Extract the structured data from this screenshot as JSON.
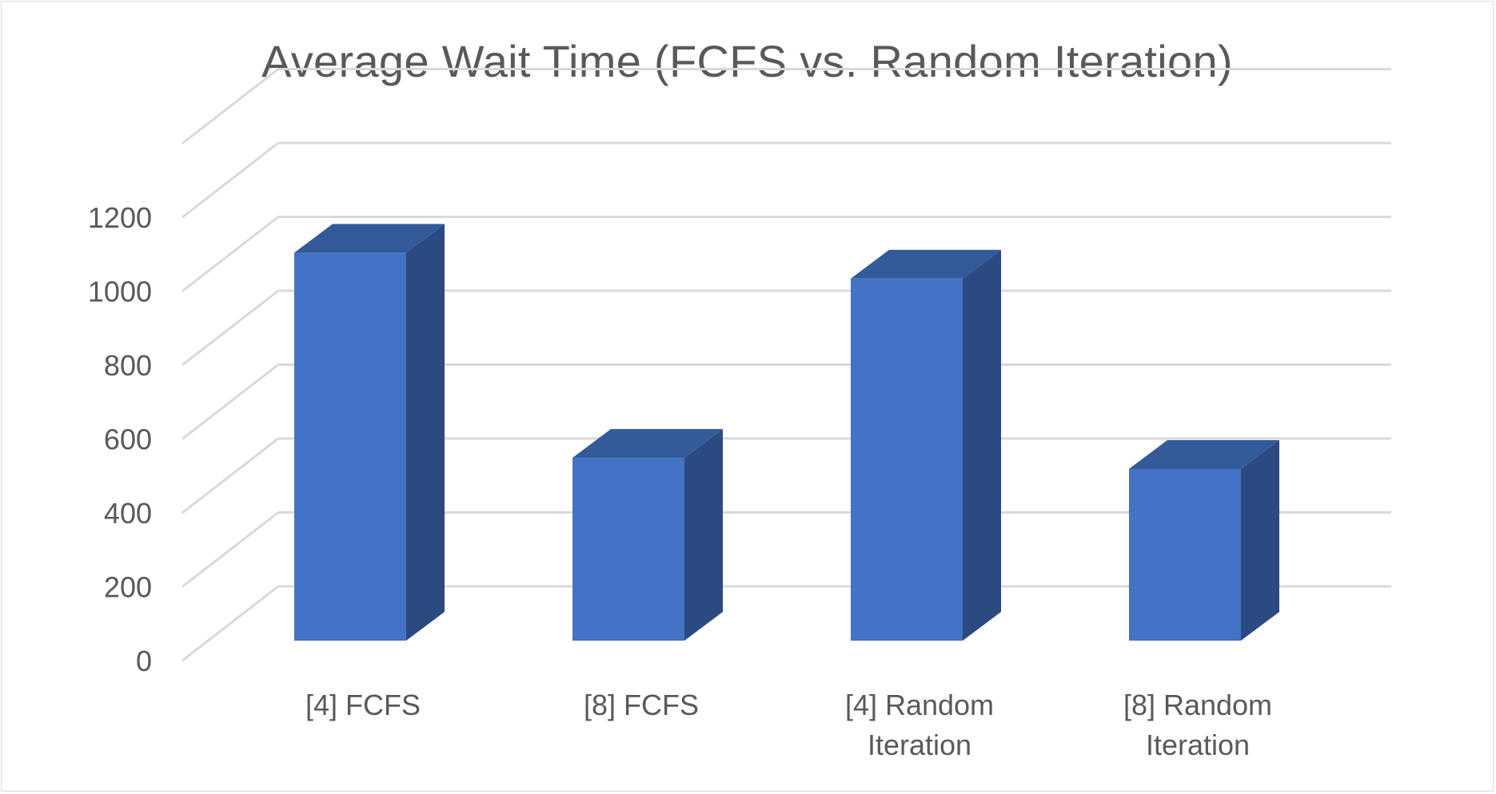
{
  "chart_data": {
    "type": "bar",
    "title": "Average Wait Time (FCFS vs. Random Iteration)",
    "xlabel": "",
    "ylabel": "",
    "categories": [
      [
        "[4] FCFS"
      ],
      [
        "[8] FCFS"
      ],
      [
        "[4] Random",
        "Iteration"
      ],
      [
        "[8] Random",
        "Iteration"
      ]
    ],
    "values": [
      1050,
      495,
      980,
      465
    ],
    "ylim": [
      0,
      1200
    ],
    "yticks": [
      "0",
      "200",
      "400",
      "600",
      "800",
      "1000",
      "1200"
    ],
    "grid": true,
    "legend": "none",
    "colors": {
      "bar_front": "#4472c4",
      "bar_side": "#2b4a82",
      "bar_top": "#335a99",
      "grid": "#d9d9d9",
      "text": "#595959"
    }
  }
}
